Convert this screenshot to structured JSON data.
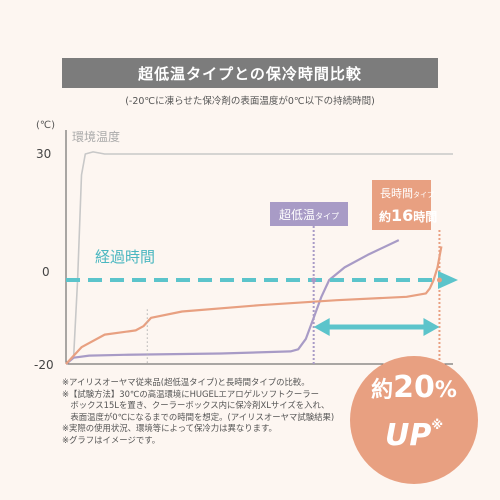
{
  "title": "超低温タイプとの保冷時間比較",
  "subtitle": "(-20℃に凍らせた保冷剤の表面温度が0℃以下の持続時間)",
  "chart_data": {
    "type": "line",
    "ylabel": "(℃)",
    "yticks": [
      30,
      0,
      -20
    ],
    "ylim": [
      -20,
      30
    ],
    "xlim": [
      0,
      100
    ],
    "grid": false,
    "series": [
      {
        "name": "環境温度",
        "color": "#c8c8c8",
        "points": [
          [
            0,
            -20
          ],
          [
            2,
            -18
          ],
          [
            3,
            0
          ],
          [
            4,
            25
          ],
          [
            5,
            30
          ],
          [
            7,
            30.5
          ],
          [
            10,
            30
          ],
          [
            30,
            30
          ],
          [
            100,
            30
          ]
        ]
      },
      {
        "name": "超低温タイプ",
        "color": "#a89bc6",
        "points": [
          [
            0,
            -20
          ],
          [
            2,
            -18.5
          ],
          [
            6,
            -18
          ],
          [
            15,
            -17.8
          ],
          [
            40,
            -17.5
          ],
          [
            58,
            -17
          ],
          [
            60,
            -16.5
          ],
          [
            62,
            -14
          ],
          [
            64,
            -9
          ],
          [
            66,
            -4
          ],
          [
            68,
            0
          ],
          [
            72,
            3
          ],
          [
            78,
            6
          ],
          [
            86,
            9.5
          ]
        ]
      },
      {
        "name": "長時間タイプ",
        "color": "#e8a081",
        "points": [
          [
            0,
            -20
          ],
          [
            4,
            -16
          ],
          [
            10,
            -13
          ],
          [
            18,
            -12
          ],
          [
            20,
            -11
          ],
          [
            22,
            -9
          ],
          [
            30,
            -7.5
          ],
          [
            50,
            -6
          ],
          [
            70,
            -4.8
          ],
          [
            88,
            -4
          ],
          [
            93,
            -3.2
          ],
          [
            94,
            -2
          ],
          [
            95,
            0
          ],
          [
            96,
            3
          ],
          [
            97,
            8
          ]
        ]
      }
    ],
    "legend": {
      "env": "環境温度",
      "ultra": "超低温",
      "ultra_suffix": "タイプ",
      "long": "長時間",
      "long_suffix": "タイプ",
      "long_sub_pre": "約",
      "long_sub_num": "16",
      "long_sub_post": "時間"
    },
    "annotations": {
      "elapsed": "経過時間"
    },
    "colors": {
      "env": "#c8c8c8",
      "ultra": "#a89bc6",
      "long": "#e8a081",
      "arrow": "#5cc4cb",
      "axis": "#555555"
    }
  },
  "notes": [
    "※アイリスオーヤマ従来品(超低温タイプ)と長時間タイプの比較。",
    "※【試験方法】30℃の高温環境にHUGELエアロゲルソフトクーラー",
    "　ボックス15Lを置き、クーラーボックス内に保冷剤XLサイズを入れ、",
    "　表面温度が0℃になるまでの時間を想定。(アイリスオーヤマ試験結果)",
    "※実際の使用状況、環境等によって保冷力は異なります。",
    "※グラフはイメージです。"
  ],
  "badge": {
    "line1_pre": "約",
    "line1_num": "20",
    "line1_unit": "%",
    "line2": "UP",
    "mark": "※"
  }
}
